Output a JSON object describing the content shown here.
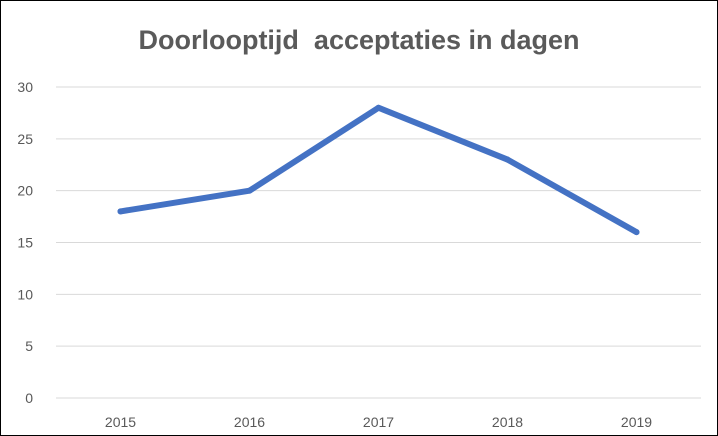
{
  "chart_data": {
    "type": "line",
    "title": "Doorlooptijd  acceptaties in dagen",
    "xlabel": "",
    "ylabel": "",
    "categories": [
      "2015",
      "2016",
      "2017",
      "2018",
      "2019"
    ],
    "series": [
      {
        "values": [
          18,
          20,
          28,
          23,
          16
        ],
        "color": "#4472c4"
      }
    ],
    "ylim": [
      0,
      30
    ],
    "yticks": [
      0,
      5,
      10,
      15,
      20,
      25,
      30
    ],
    "grid": true,
    "legend": "none",
    "gridline_color": "#d9d9d9"
  }
}
